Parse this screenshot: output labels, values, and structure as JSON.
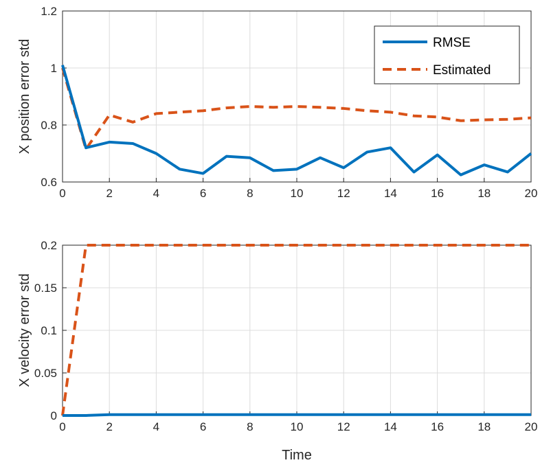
{
  "colors": {
    "rmse": "#0072BD",
    "estimated": "#D95319",
    "grid": "#dcdcdc",
    "axis": "#262626"
  },
  "chart_data": [
    {
      "type": "line",
      "ylabel": "X position error std",
      "xlabel": "",
      "xlim": [
        0,
        20
      ],
      "ylim": [
        0.6,
        1.2
      ],
      "xticks": [
        "0",
        "2",
        "4",
        "6",
        "8",
        "10",
        "12",
        "14",
        "16",
        "18",
        "20"
      ],
      "yticks": [
        "0.6",
        "0.8",
        "1",
        "1.2"
      ],
      "grid": true,
      "legend": "top-right",
      "x": [
        0,
        1,
        2,
        3,
        4,
        5,
        6,
        7,
        8,
        9,
        10,
        11,
        12,
        13,
        14,
        15,
        16,
        17,
        18,
        19,
        20
      ],
      "series": [
        {
          "name": "RMSE",
          "style": "solid",
          "values": [
            1.01,
            0.72,
            0.74,
            0.735,
            0.7,
            0.645,
            0.63,
            0.69,
            0.685,
            0.64,
            0.645,
            0.685,
            0.65,
            0.705,
            0.72,
            0.635,
            0.695,
            0.625,
            0.66,
            0.635,
            0.7
          ]
        },
        {
          "name": "Estimated",
          "style": "dashed",
          "values": [
            1.0,
            0.715,
            0.835,
            0.81,
            0.84,
            0.845,
            0.85,
            0.86,
            0.865,
            0.862,
            0.865,
            0.862,
            0.858,
            0.85,
            0.845,
            0.832,
            0.828,
            0.815,
            0.818,
            0.82,
            0.825
          ]
        }
      ]
    },
    {
      "type": "line",
      "ylabel": "X velocity error std",
      "xlabel": "Time",
      "xlim": [
        0,
        20
      ],
      "ylim": [
        0,
        0.2
      ],
      "xticks": [
        "0",
        "2",
        "4",
        "6",
        "8",
        "10",
        "12",
        "14",
        "16",
        "18",
        "20"
      ],
      "yticks": [
        "0",
        "0.05",
        "0.1",
        "0.15",
        "0.2"
      ],
      "grid": true,
      "x": [
        0,
        1,
        2,
        3,
        4,
        5,
        6,
        7,
        8,
        9,
        10,
        11,
        12,
        13,
        14,
        15,
        16,
        17,
        18,
        19,
        20
      ],
      "series": [
        {
          "name": "RMSE",
          "style": "solid",
          "values": [
            0,
            0,
            0.001,
            0.001,
            0.001,
            0.001,
            0.001,
            0.001,
            0.001,
            0.001,
            0.001,
            0.001,
            0.001,
            0.001,
            0.001,
            0.001,
            0.001,
            0.001,
            0.001,
            0.001,
            0.001
          ]
        },
        {
          "name": "Estimated",
          "style": "dashed",
          "values": [
            0,
            0.2,
            0.2,
            0.2,
            0.2,
            0.2,
            0.2,
            0.2,
            0.2,
            0.2,
            0.2,
            0.2,
            0.2,
            0.2,
            0.2,
            0.2,
            0.2,
            0.2,
            0.2,
            0.2,
            0.2
          ]
        }
      ]
    }
  ]
}
